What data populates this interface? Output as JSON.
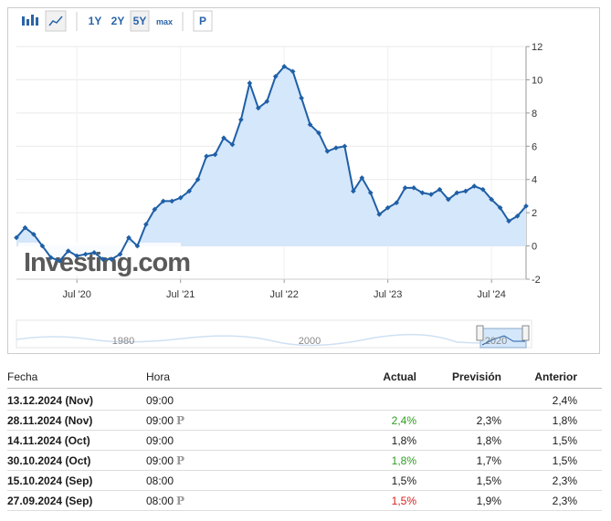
{
  "toolbar": {
    "buttons": [
      "1Y",
      "2Y",
      "5Y",
      "max",
      "P"
    ],
    "active": 2
  },
  "chart_data": {
    "type": "line",
    "color": "#1f5fa6",
    "fill_color": "#d4e7fb",
    "grid": true,
    "watermark": "Investing.com",
    "x": [
      "2019-12",
      "2020-01",
      "2020-02",
      "2020-03",
      "2020-04",
      "2020-05",
      "2020-06",
      "2020-07",
      "2020-08",
      "2020-09",
      "2020-10",
      "2020-11",
      "2020-12",
      "2021-01",
      "2021-02",
      "2021-03",
      "2021-04",
      "2021-05",
      "2021-06",
      "2021-07",
      "2021-08",
      "2021-09",
      "2021-10",
      "2021-11",
      "2021-12",
      "2022-01",
      "2022-02",
      "2022-03",
      "2022-04",
      "2022-05",
      "2022-06",
      "2022-07",
      "2022-08",
      "2022-09",
      "2022-10",
      "2022-11",
      "2022-12",
      "2023-01",
      "2023-02",
      "2023-03",
      "2023-04",
      "2023-05",
      "2023-06",
      "2023-07",
      "2023-08",
      "2023-09",
      "2023-10",
      "2023-11",
      "2023-12",
      "2024-01",
      "2024-02",
      "2024-03",
      "2024-04",
      "2024-05",
      "2024-06",
      "2024-07",
      "2024-08",
      "2024-09",
      "2024-10",
      "2024-11"
    ],
    "values": [
      0.5,
      1.1,
      0.7,
      0.0,
      -0.7,
      -0.9,
      -0.3,
      -0.6,
      -0.5,
      -0.4,
      -0.8,
      -0.8,
      -0.5,
      0.5,
      0.0,
      1.3,
      2.2,
      2.7,
      2.7,
      2.9,
      3.3,
      4.0,
      5.4,
      5.5,
      6.5,
      6.1,
      7.6,
      9.8,
      8.3,
      8.7,
      10.2,
      10.8,
      10.5,
      8.9,
      7.3,
      6.8,
      5.7,
      5.9,
      6.0,
      3.3,
      4.1,
      3.2,
      1.9,
      2.3,
      2.6,
      3.5,
      3.5,
      3.2,
      3.1,
      3.4,
      2.8,
      3.2,
      3.3,
      3.6,
      3.4,
      2.8,
      2.3,
      1.5,
      1.8,
      2.4
    ],
    "xlim": [
      "2019-12",
      "2024-11"
    ],
    "xticks": [
      {
        "value": "2020-07",
        "label": "Jul '20"
      },
      {
        "value": "2021-07",
        "label": "Jul '21"
      },
      {
        "value": "2022-07",
        "label": "Jul '22"
      },
      {
        "value": "2023-07",
        "label": "Jul '23"
      },
      {
        "value": "2024-07",
        "label": "Jul '24"
      }
    ],
    "ylim": [
      -2,
      12
    ],
    "yticks": [
      -2,
      0,
      2,
      4,
      6,
      8,
      10,
      12
    ]
  },
  "navigator": {
    "labels": [
      "1980",
      "2000",
      "2020"
    ]
  },
  "table": {
    "headers": [
      "Fecha",
      "Hora",
      "Actual",
      "Previsión",
      "Anterior"
    ],
    "rows": [
      {
        "fecha": "13.12.2024 (Nov)",
        "hora": "09:00",
        "anterior": "2,4%"
      },
      {
        "fecha": "28.11.2024 (Nov)",
        "hora": "09:00",
        "p": "P",
        "actual": "2,4%",
        "actual_color": "#2e9e1f",
        "prevision": "2,3%",
        "anterior": "1,8%"
      },
      {
        "fecha": "14.11.2024 (Oct)",
        "hora": "09:00",
        "actual": "1,8%",
        "prevision": "1,8%",
        "anterior": "1,5%"
      },
      {
        "fecha": "30.10.2024 (Oct)",
        "hora": "09:00",
        "p": "P",
        "actual": "1,8%",
        "actual_color": "#2e9e1f",
        "prevision": "1,7%",
        "anterior": "1,5%"
      },
      {
        "fecha": "15.10.2024 (Sep)",
        "hora": "08:00",
        "actual": "1,5%",
        "prevision": "1,5%",
        "anterior": "2,3%"
      },
      {
        "fecha": "27.09.2024 (Sep)",
        "hora": "08:00",
        "p": "P",
        "actual": "1,5%",
        "actual_color": "#d91e1e",
        "prevision": "1,9%",
        "anterior": "2,3%"
      }
    ]
  }
}
